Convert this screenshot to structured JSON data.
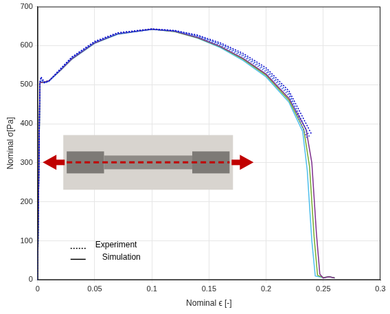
{
  "chart_data": {
    "type": "line",
    "x_label": "Nominal ϵ [-]",
    "y_label": "Nominal σ[Pa]",
    "xlim": [
      0,
      0.3
    ],
    "xticks": [
      0,
      0.05,
      0.1,
      0.15,
      0.2,
      0.25,
      0.3
    ],
    "ylim": [
      0,
      700
    ],
    "yticks": [
      0,
      100,
      200,
      300,
      400,
      500,
      600,
      700
    ],
    "grid": true,
    "legend": "lower left",
    "series": [
      {
        "name": "Experiment",
        "color": "#0000cc",
        "line_style": "dotted",
        "x": [
          0,
          0.001,
          0.002,
          0.003,
          0.006,
          0.01,
          0.02,
          0.03,
          0.05,
          0.07,
          0.1,
          0.12,
          0.14,
          0.16,
          0.18,
          0.2,
          0.22,
          0.24
        ],
        "values": [
          0,
          260,
          508,
          520,
          506,
          510,
          541,
          571,
          611,
          633,
          643,
          639,
          627,
          607,
          580,
          543,
          484,
          372
        ]
      },
      {
        "name": "Experiment",
        "color": "#1f3fd6",
        "line_style": "dotted",
        "x": [
          0,
          0.001,
          0.002,
          0.003,
          0.006,
          0.01,
          0.02,
          0.03,
          0.05,
          0.07,
          0.1,
          0.12,
          0.14,
          0.16,
          0.18,
          0.2,
          0.22,
          0.238
        ],
        "values": [
          0,
          255,
          505,
          515,
          505,
          509,
          539,
          569,
          609,
          631,
          642,
          638,
          625,
          604,
          576,
          538,
          478,
          366
        ]
      },
      {
        "name": "Experiment",
        "color": "#3d5ee0",
        "line_style": "dotted",
        "x": [
          0,
          0.001,
          0.002,
          0.003,
          0.006,
          0.01,
          0.02,
          0.03,
          0.05,
          0.07,
          0.1,
          0.12,
          0.14,
          0.16,
          0.18,
          0.2,
          0.22,
          0.236
        ],
        "values": [
          0,
          250,
          503,
          512,
          504,
          508,
          538,
          568,
          608,
          630,
          641,
          637,
          623,
          601,
          572,
          533,
          472,
          362
        ]
      },
      {
        "name": "Simulation",
        "color": "#7e2f8e",
        "line_style": "solid",
        "x": [
          0,
          0.002,
          0.005,
          0.01,
          0.02,
          0.03,
          0.05,
          0.07,
          0.1,
          0.12,
          0.14,
          0.16,
          0.18,
          0.2,
          0.22,
          0.235,
          0.24,
          0.244,
          0.247,
          0.25,
          0.255,
          0.26
        ],
        "values": [
          0,
          505,
          506,
          510,
          537,
          566,
          607,
          630,
          642,
          637,
          621,
          598,
          567,
          527,
          465,
          385,
          300,
          120,
          15,
          5,
          8,
          5
        ]
      },
      {
        "name": "Simulation",
        "color": "#77ac30",
        "line_style": "solid",
        "x": [
          0,
          0.002,
          0.005,
          0.01,
          0.02,
          0.03,
          0.05,
          0.07,
          0.1,
          0.12,
          0.14,
          0.16,
          0.18,
          0.2,
          0.22,
          0.233,
          0.238,
          0.242,
          0.245,
          0.25,
          0.255,
          0.26
        ],
        "values": [
          0,
          505,
          506,
          510,
          537,
          566,
          607,
          630,
          642,
          636,
          620,
          597,
          565,
          524,
          460,
          385,
          290,
          110,
          12,
          6,
          8,
          5
        ]
      },
      {
        "name": "Simulation",
        "color": "#4dbeee",
        "line_style": "solid",
        "x": [
          0,
          0.002,
          0.005,
          0.01,
          0.02,
          0.03,
          0.05,
          0.07,
          0.1,
          0.12,
          0.14,
          0.16,
          0.18,
          0.2,
          0.22,
          0.232,
          0.236,
          0.24,
          0.243,
          0.25,
          0.255,
          0.26
        ],
        "values": [
          0,
          505,
          506,
          510,
          536,
          565,
          606,
          629,
          642,
          636,
          619,
          595,
          562,
          520,
          455,
          380,
          280,
          100,
          10,
          6,
          8,
          5
        ]
      }
    ]
  }
}
